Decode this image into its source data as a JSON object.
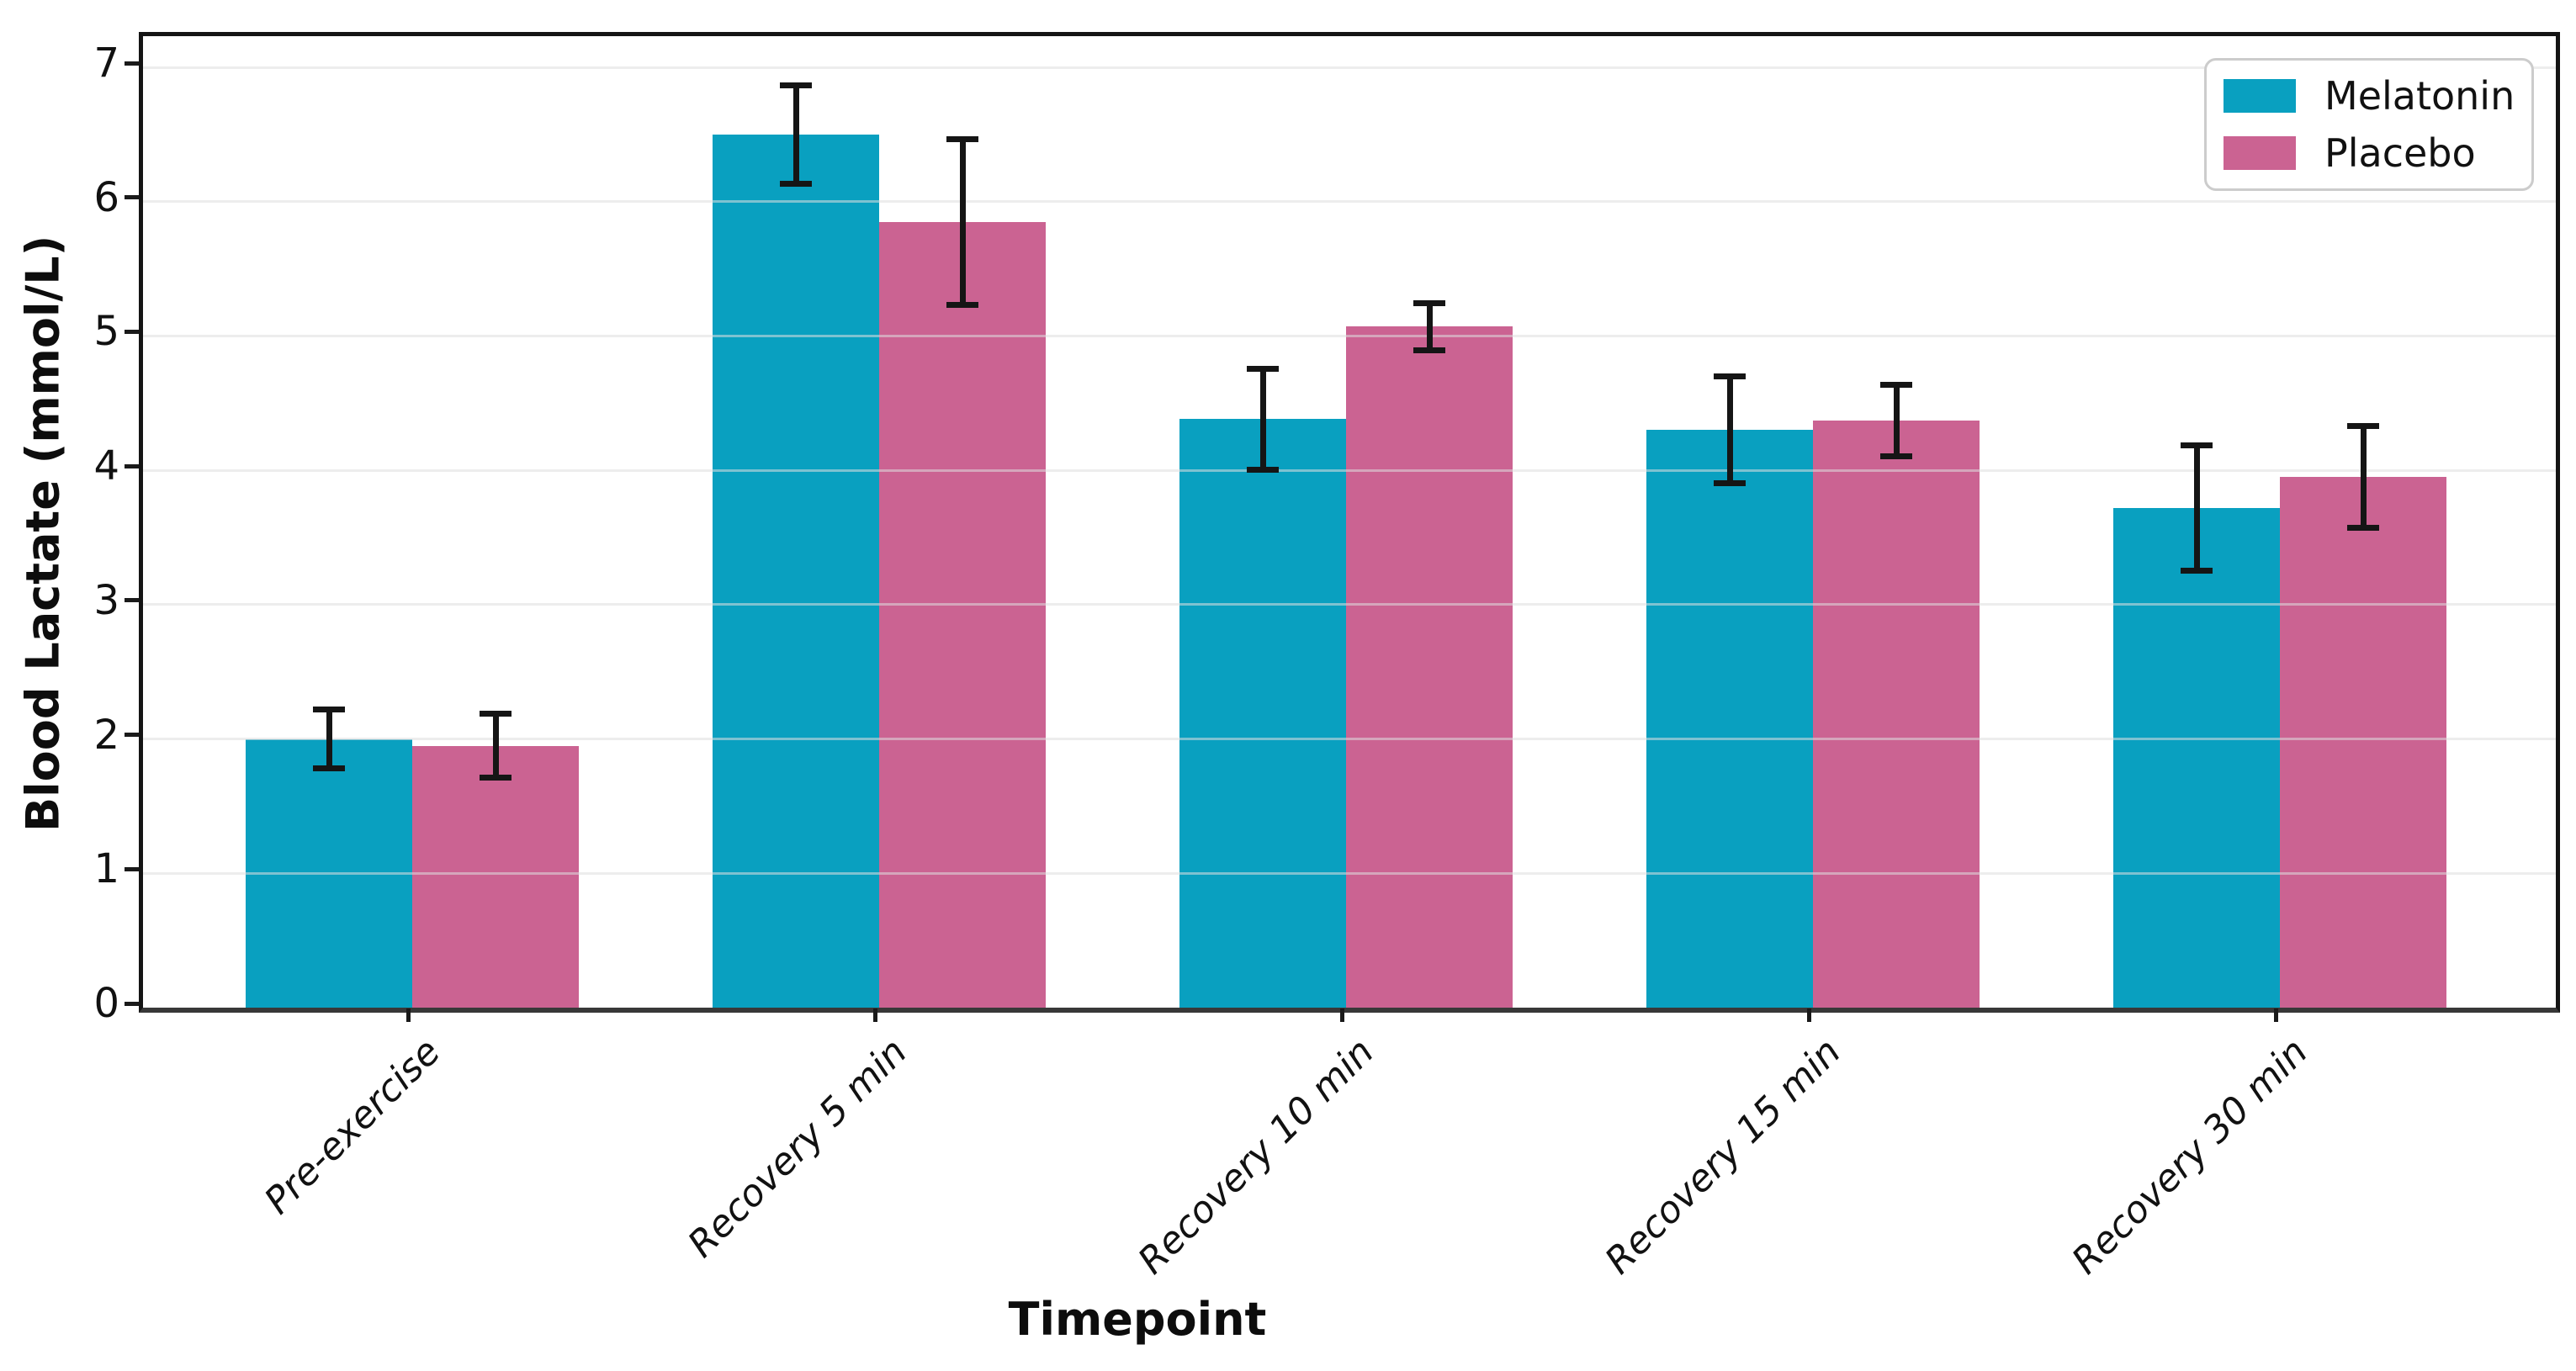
{
  "figure": {
    "background": "#ffffff"
  },
  "chart_data": {
    "type": "bar",
    "title": "",
    "xlabel": "Timepoint",
    "ylabel": "Blood Lactate (mmol/L)",
    "categories": [
      "Pre-exercise",
      "Recovery 5 min",
      "Recovery 10 min",
      "Recovery 15 min",
      "Recovery 30 min"
    ],
    "series": [
      {
        "name": "Melatonin",
        "color": "#09a0c0",
        "values": [
          2.0,
          6.5,
          4.38,
          4.3,
          3.72
        ],
        "errors": [
          0.22,
          0.37,
          0.38,
          0.4,
          0.47
        ]
      },
      {
        "name": "Placebo",
        "color": "#cb6392",
        "values": [
          1.95,
          5.85,
          5.07,
          4.37,
          3.95
        ],
        "errors": [
          0.24,
          0.62,
          0.18,
          0.27,
          0.38
        ]
      }
    ],
    "yticks": [
      0,
      1,
      2,
      3,
      4,
      5,
      6,
      7
    ],
    "ylim": [
      0,
      7.23
    ],
    "grid": "horizontal",
    "grid_over_bars": true,
    "error_bars": true,
    "error_color": "#151515",
    "legend_position": "upper right",
    "axis_frame_color": "#141414"
  }
}
